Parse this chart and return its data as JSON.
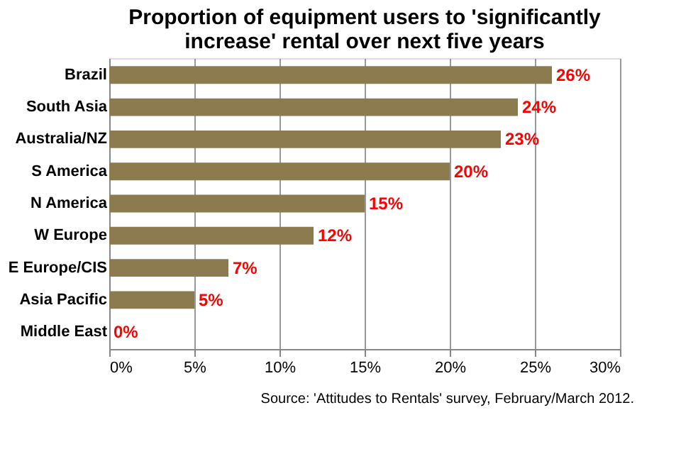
{
  "chart_data": {
    "type": "bar",
    "orientation": "horizontal",
    "title": "Proportion of equipment users to 'significantly increase' rental over next five years",
    "categories": [
      "Brazil",
      "South Asia",
      "Australia/NZ",
      "S America",
      "N America",
      "W Europe",
      "E Europe/CIS",
      "Asia Pacific",
      "Middle East"
    ],
    "values": [
      26,
      24,
      23,
      20,
      15,
      12,
      7,
      5,
      0
    ],
    "value_labels": [
      "26%",
      "24%",
      "23%",
      "20%",
      "15%",
      "12%",
      "7%",
      "5%",
      "0%"
    ],
    "color": "#8c7b4e",
    "xlim": [
      0,
      30
    ],
    "xticks": [
      {
        "value": 0,
        "label": "0%"
      },
      {
        "value": 5,
        "label": "5%"
      },
      {
        "value": 10,
        "label": "10%"
      },
      {
        "value": 15,
        "label": "15%"
      },
      {
        "value": 20,
        "label": "20%"
      },
      {
        "value": 25,
        "label": "25%"
      },
      {
        "value": 30,
        "label": "30%"
      }
    ],
    "grid": "x",
    "annotations": [
      "Source: 'Attitudes to Rentals' survey, February/March 2012."
    ]
  }
}
